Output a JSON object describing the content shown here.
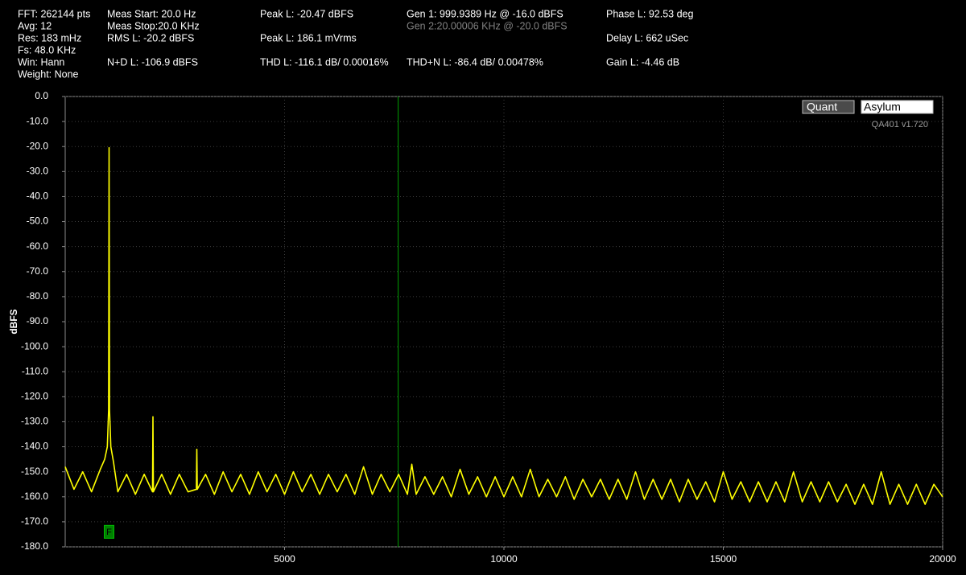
{
  "header": {
    "col1": [
      "FFT: 262144 pts",
      "Avg: 12",
      "Res: 183 mHz",
      "Fs: 48.0 KHz",
      "Win: Hann",
      "Weight: None"
    ],
    "col2": [
      "Meas Start: 20.0 Hz",
      "Meas Stop:20.0 KHz",
      "RMS L: -20.2 dBFS",
      "N+D L: -106.9 dBFS"
    ],
    "col3": [
      "Peak L: -20.47 dBFS",
      "Peak L: 186.1 mVrms",
      "THD L: -116.1 dB/ 0.00016%"
    ],
    "col4": [
      "Gen 1: 999.9389 Hz @ -16.0  dBFS",
      "Gen 2:20.00006 KHz @ -20.0  dBFS",
      "THD+N L: -86.4 dB/ 0.00478%"
    ],
    "col5": [
      "Phase L: 92.53 deg",
      "Delay L: 662 uSec",
      "Gain L: -4.46 dB"
    ]
  },
  "logo": {
    "left": "Quant",
    "right": "Asylum",
    "version": "QA401 v1.720"
  },
  "chart_data": {
    "type": "line",
    "ylabel": "dBFS",
    "xlim": [
      0,
      20000
    ],
    "ylim": [
      -180,
      0
    ],
    "xticks": [
      5000,
      10000,
      15000,
      20000
    ],
    "yticks": [
      {
        "value": 0,
        "label": "0.0"
      },
      {
        "value": -10,
        "label": "-10.0"
      },
      {
        "value": -20,
        "label": "-20.0"
      },
      {
        "value": -30,
        "label": "-30.0"
      },
      {
        "value": -40,
        "label": "-40.0"
      },
      {
        "value": -50,
        "label": "-50.0"
      },
      {
        "value": -60,
        "label": "-60.0"
      },
      {
        "value": -70,
        "label": "-70.0"
      },
      {
        "value": -80,
        "label": "-80.0"
      },
      {
        "value": -90,
        "label": "-90.0"
      },
      {
        "value": -100,
        "label": "-100.0"
      },
      {
        "value": -110,
        "label": "-110.0"
      },
      {
        "value": -120,
        "label": "-120.0"
      },
      {
        "value": -130,
        "label": "-130.0"
      },
      {
        "value": -140,
        "label": "-140.0"
      },
      {
        "value": -150,
        "label": "-150.0"
      },
      {
        "value": -160,
        "label": "-160.0"
      },
      {
        "value": -170,
        "label": "-170.0"
      },
      {
        "value": -180,
        "label": "-180.0"
      }
    ],
    "grid": true,
    "cursor": {
      "x": 7590,
      "color": "#00a000"
    },
    "marker": {
      "label": "F",
      "x": 1000,
      "y": -174,
      "color": "#008000"
    },
    "x": [
      0,
      200,
      400,
      600,
      800,
      900,
      960,
      990,
      1000,
      1010,
      1040,
      1100,
      1200,
      1400,
      1600,
      1800,
      1990,
      2000,
      2010,
      2200,
      2400,
      2600,
      2800,
      2990,
      3000,
      3010,
      3200,
      3400,
      3600,
      3800,
      4000,
      4200,
      4400,
      4600,
      4800,
      5000,
      5200,
      5400,
      5600,
      5800,
      6000,
      6200,
      6400,
      6600,
      6800,
      7000,
      7200,
      7400,
      7600,
      7800,
      7900,
      8000,
      8200,
      8400,
      8600,
      8800,
      9000,
      9200,
      9400,
      9600,
      9800,
      10000,
      10200,
      10400,
      10600,
      10800,
      11000,
      11200,
      11400,
      11600,
      11800,
      12000,
      12200,
      12400,
      12600,
      12800,
      13000,
      13200,
      13400,
      13600,
      13800,
      14000,
      14200,
      14400,
      14600,
      14800,
      15000,
      15200,
      15400,
      15600,
      15800,
      16000,
      16200,
      16400,
      16600,
      16800,
      17000,
      17200,
      17400,
      17600,
      17800,
      18000,
      18200,
      18400,
      18600,
      18800,
      19000,
      19200,
      19400,
      19600,
      19800,
      20000
    ],
    "series": [
      {
        "color": "#ffff00",
        "values": [
          -148,
          -157,
          -150,
          -158,
          -149,
          -145,
          -140,
          -125,
          -20.47,
          -125,
          -140,
          -146,
          -158,
          -151,
          -159,
          -151,
          -158,
          -128,
          -158,
          -151,
          -159,
          -151,
          -158,
          -157,
          -141,
          -157,
          -151,
          -159,
          -150,
          -158,
          -151,
          -159,
          -150,
          -158,
          -151,
          -159,
          -150,
          -158,
          -151,
          -159,
          -151,
          -158,
          -151,
          -159,
          -148,
          -159,
          -151,
          -158,
          -151,
          -159,
          -147,
          -159,
          -152,
          -159,
          -152,
          -160,
          -149,
          -159,
          -152,
          -160,
          -152,
          -160,
          -152,
          -160,
          -149,
          -160,
          -153,
          -160,
          -152,
          -161,
          -153,
          -160,
          -153,
          -161,
          -153,
          -161,
          -150,
          -161,
          -153,
          -161,
          -153,
          -162,
          -153,
          -161,
          -154,
          -162,
          -150,
          -161,
          -154,
          -162,
          -154,
          -162,
          -154,
          -162,
          -150,
          -162,
          -154,
          -162,
          -154,
          -162,
          -155,
          -163,
          -155,
          -163,
          -150,
          -163,
          -155,
          -163,
          -155,
          -163,
          -155,
          -160
        ]
      }
    ]
  }
}
